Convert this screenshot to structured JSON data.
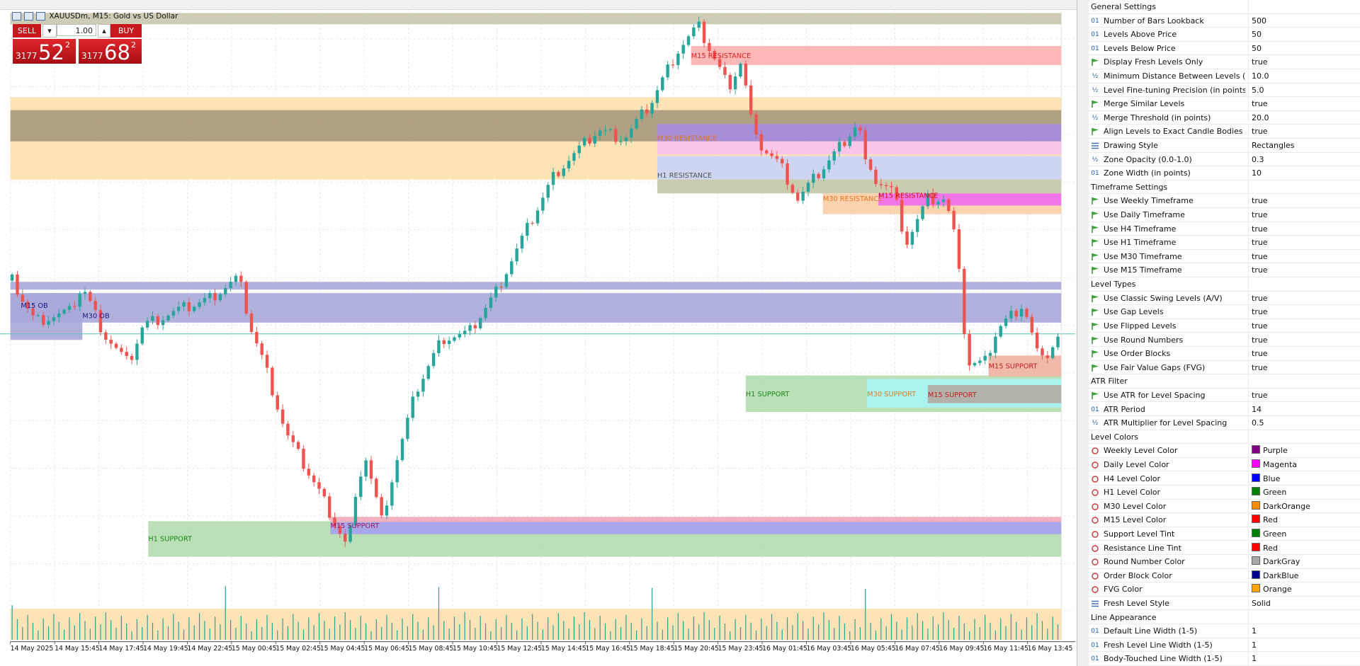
{
  "header": {
    "symbol": "XAUUSDm, M15:  Gold vs US Dollar"
  },
  "trade_panel": {
    "sell": "SELL",
    "buy": "BUY",
    "lot": "1.00",
    "sell_price": {
      "prefix": "3177",
      "big": "52",
      "sup": "2"
    },
    "buy_price": {
      "prefix": "3177",
      "big": "68",
      "sup": "2"
    }
  },
  "chart": {
    "zone_labels": [
      "M15 RESISTANCE",
      "M30 RESISTANCE",
      "H1 RESISTANCE",
      "M30 RESISTANCE",
      "M15 RESISTANCE",
      "M15 OB",
      "M30 OB",
      "H1 SUPPORT",
      "M30 SUPPORT",
      "M15 SUPPORT",
      "M15 SUPPORT",
      "M15 SUPPORT",
      "H1 SUPPORT"
    ],
    "time_labels": [
      "14 May 2025",
      "14 May 15:45",
      "14 May 17:45",
      "14 May 19:45",
      "14 May 22:45",
      "15 May 00:45",
      "15 May 02:45",
      "15 May 04:45",
      "15 May 06:45",
      "15 May 08:45",
      "15 May 10:45",
      "15 May 12:45",
      "15 May 14:45",
      "15 May 16:45",
      "15 May 18:45",
      "15 May 20:45",
      "15 May 23:45",
      "16 May 01:45",
      "16 May 03:45",
      "16 May 05:45",
      "16 May 07:45",
      "16 May 09:45",
      "16 May 11:45",
      "16 May 13:45"
    ]
  },
  "settings": {
    "rows": [
      {
        "name": "General Settings"
      },
      {
        "icon": "01",
        "name": "Number of Bars Lookback",
        "value": "500"
      },
      {
        "icon": "01",
        "name": "Levels Above Price",
        "value": "50"
      },
      {
        "icon": "01",
        "name": "Levels Below Price",
        "value": "50"
      },
      {
        "name": "Display Fresh Levels Only",
        "value": "true"
      },
      {
        "icon": "½",
        "name": "Minimum Distance Between Levels (in po...",
        "value": "10.0"
      },
      {
        "icon": "½",
        "name": "Level Fine-tuning Precision (in points)",
        "value": "5.0"
      },
      {
        "name": "Merge Similar Levels",
        "value": "true"
      },
      {
        "icon": "½",
        "name": "Merge Threshold (in points)",
        "value": "20.0"
      },
      {
        "name": "Align Levels to Exact Candle Bodies",
        "value": "true"
      },
      {
        "name": "Drawing Style",
        "value": "Rectangles"
      },
      {
        "icon": "½",
        "name": "Zone Opacity (0.0-1.0)",
        "value": "0.3"
      },
      {
        "icon": "01",
        "name": "Zone Width (in points)",
        "value": "10"
      },
      {
        "name": "Timeframe Settings"
      },
      {
        "name": "Use Weekly Timeframe",
        "value": "true"
      },
      {
        "name": "Use Daily Timeframe",
        "value": "true"
      },
      {
        "name": "Use H4 Timeframe",
        "value": "true"
      },
      {
        "name": "Use H1 Timeframe",
        "value": "true"
      },
      {
        "name": "Use M30 Timeframe",
        "value": "true"
      },
      {
        "name": "Use M15 Timeframe",
        "value": "true"
      },
      {
        "name": "Level Types"
      },
      {
        "name": "Use Classic Swing Levels (A/V)",
        "value": "true"
      },
      {
        "name": "Use Gap Levels",
        "value": "true"
      },
      {
        "name": "Use Flipped Levels",
        "value": "true"
      },
      {
        "name": "Use Round Numbers",
        "value": "true"
      },
      {
        "name": "Use Order Blocks",
        "value": "true"
      },
      {
        "name": "Use Fair Value Gaps (FVG)",
        "value": "true"
      },
      {
        "name": "ATR Filter"
      },
      {
        "name": "Use ATR for Level Spacing",
        "value": "true"
      },
      {
        "icon": "01",
        "name": "ATR Period",
        "value": "14"
      },
      {
        "icon": "½",
        "name": "ATR Multiplier for Level Spacing",
        "value": "0.5"
      },
      {
        "name": "Level Colors"
      },
      {
        "name": "Weekly Level Color",
        "value": "Purple",
        "swatch": "#800080"
      },
      {
        "name": "Daily Level Color",
        "value": "Magenta",
        "swatch": "#ff00ff"
      },
      {
        "name": "H4 Level Color",
        "value": "Blue",
        "swatch": "#0000ff"
      },
      {
        "name": "H1 Level Color",
        "value": "Green",
        "swatch": "#008000"
      },
      {
        "name": "M30 Level Color",
        "value": "DarkOrange",
        "swatch": "#ff8c00"
      },
      {
        "name": "M15 Level Color",
        "value": "Red",
        "swatch": "#ff0000"
      },
      {
        "name": "Support Level Tint",
        "value": "Green",
        "swatch": "#008000"
      },
      {
        "name": "Resistance Line Tint",
        "value": "Red",
        "swatch": "#ff0000"
      },
      {
        "name": "Round Number Color",
        "value": "DarkGray",
        "swatch": "#a9a9a9"
      },
      {
        "name": "Order Block Color",
        "value": "DarkBlue",
        "swatch": "#00008b"
      },
      {
        "name": "FVG Color",
        "value": "Orange",
        "swatch": "#ffa500"
      },
      {
        "name": "Fresh Level Style",
        "value": "Solid"
      },
      {
        "name": "Line Appearance"
      },
      {
        "icon": "01",
        "name": "Default Line Width (1-5)",
        "value": "1"
      },
      {
        "icon": "01",
        "name": "Fresh Level Line Width (1-5)",
        "value": "1"
      },
      {
        "icon": "01",
        "name": "Body-Touched Line Width (1-5)",
        "value": "1"
      }
    ]
  }
}
